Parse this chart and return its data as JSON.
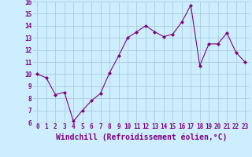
{
  "x": [
    0,
    1,
    2,
    3,
    4,
    5,
    6,
    7,
    8,
    9,
    10,
    11,
    12,
    13,
    14,
    15,
    16,
    17,
    18,
    19,
    20,
    21,
    22,
    23
  ],
  "y": [
    10.0,
    9.7,
    8.3,
    8.5,
    6.1,
    7.0,
    7.8,
    8.4,
    10.1,
    11.5,
    13.0,
    13.5,
    14.0,
    13.5,
    13.1,
    13.3,
    14.3,
    15.7,
    10.7,
    12.5,
    12.5,
    13.4,
    11.8,
    11.0
  ],
  "line_color": "#800080",
  "marker": "D",
  "marker_size": 2,
  "bg_color": "#cceeff",
  "grid_color": "#aaccdd",
  "xlabel": "Windchill (Refroidissement éolien,°C)",
  "ylim": [
    6,
    16
  ],
  "xlim": [
    -0.5,
    23.5
  ],
  "yticks": [
    6,
    7,
    8,
    9,
    10,
    11,
    12,
    13,
    14,
    15,
    16
  ],
  "xticks": [
    0,
    1,
    2,
    3,
    4,
    5,
    6,
    7,
    8,
    9,
    10,
    11,
    12,
    13,
    14,
    15,
    16,
    17,
    18,
    19,
    20,
    21,
    22,
    23
  ],
  "tick_label_fontsize": 5.5,
  "xlabel_fontsize": 7,
  "axis_label_color": "#800080"
}
